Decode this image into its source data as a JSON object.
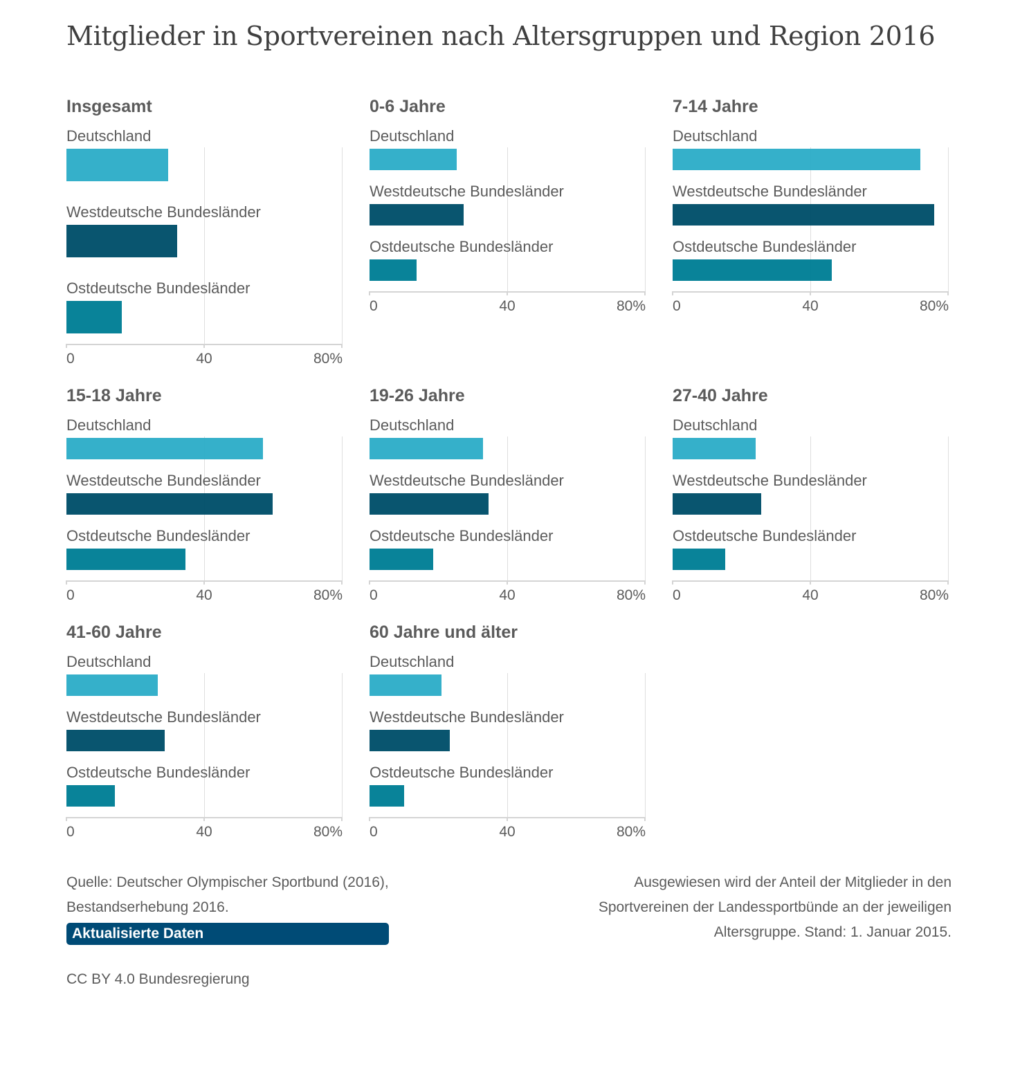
{
  "title": "Mitglieder in Sportvereinen nach Altersgruppen und Region 2016",
  "colors": {
    "Deutschland": "#2eadc8",
    "Westdeutsche Bundesländer": "#01506a",
    "Ostdeutsche Bundesländer": "#017f96"
  },
  "chart_data": [
    {
      "type": "bar",
      "orientation": "horizontal",
      "title": "Insgesamt",
      "categories": [
        "Deutschland",
        "Westdeutsche Bundesländer",
        "Ostdeutsche Bundesländer"
      ],
      "values": [
        29.6,
        32.2,
        16.0
      ],
      "xlim": [
        0,
        80
      ],
      "xticks": [
        "0",
        "40",
        "80%"
      ],
      "grid": true
    },
    {
      "type": "bar",
      "orientation": "horizontal",
      "title": "0-6 Jahre",
      "categories": [
        "Deutschland",
        "Westdeutsche Bundesländer",
        "Ostdeutsche Bundesländer"
      ],
      "values": [
        25.3,
        27.3,
        13.7
      ],
      "xlim": [
        0,
        80
      ],
      "xticks": [
        "0",
        "40",
        "80%"
      ],
      "grid": true
    },
    {
      "type": "bar",
      "orientation": "horizontal",
      "title": "7-14 Jahre",
      "categories": [
        "Deutschland",
        "Westdeutsche Bundesländer",
        "Ostdeutsche Bundesländer"
      ],
      "values": [
        72.0,
        76.0,
        46.3
      ],
      "xlim": [
        0,
        80
      ],
      "xticks": [
        "0",
        "40",
        "80%"
      ],
      "grid": true
    },
    {
      "type": "bar",
      "orientation": "horizontal",
      "title": "15-18 Jahre",
      "categories": [
        "Deutschland",
        "Westdeutsche Bundesländer",
        "Ostdeutsche Bundesländer"
      ],
      "values": [
        57.1,
        59.9,
        34.6
      ],
      "xlim": [
        0,
        80
      ],
      "xticks": [
        "0",
        "40",
        "80%"
      ],
      "grid": true
    },
    {
      "type": "bar",
      "orientation": "horizontal",
      "title": "19-26 Jahre",
      "categories": [
        "Deutschland",
        "Westdeutsche Bundesländer",
        "Ostdeutsche Bundesländer"
      ],
      "values": [
        32.9,
        34.6,
        18.5
      ],
      "xlim": [
        0,
        80
      ],
      "xticks": [
        "0",
        "40",
        "80%"
      ],
      "grid": true
    },
    {
      "type": "bar",
      "orientation": "horizontal",
      "title": "27-40 Jahre",
      "categories": [
        "Deutschland",
        "Westdeutsche Bundesländer",
        "Ostdeutsche Bundesländer"
      ],
      "values": [
        24.1,
        25.7,
        15.3
      ],
      "xlim": [
        0,
        80
      ],
      "xticks": [
        "0",
        "40",
        "80%"
      ],
      "grid": true
    },
    {
      "type": "bar",
      "orientation": "horizontal",
      "title": "41-60 Jahre",
      "categories": [
        "Deutschland",
        "Westdeutsche Bundesländer",
        "Ostdeutsche Bundesländer"
      ],
      "values": [
        26.5,
        28.5,
        14.1
      ],
      "xlim": [
        0,
        80
      ],
      "xticks": [
        "0",
        "40",
        "80%"
      ],
      "grid": true
    },
    {
      "type": "bar",
      "orientation": "horizontal",
      "title": "60 Jahre und älter",
      "categories": [
        "Deutschland",
        "Westdeutsche Bundesländer",
        "Ostdeutsche Bundesländer"
      ],
      "values": [
        20.9,
        23.3,
        10.1
      ],
      "xlim": [
        0,
        80
      ],
      "xticks": [
        "0",
        "40",
        "80%"
      ],
      "grid": true
    }
  ],
  "source": {
    "line1": "Quelle: Deutscher Olympischer Sportbund (2016),",
    "line2": "Bestandserhebung 2016.",
    "badge": "Aktualisierte Daten"
  },
  "note": {
    "line1": "Ausgewiesen wird der Anteil der Mitglieder in den",
    "line2": "Sportvereinen der Landessportbünde an der jeweiligen",
    "line3": "Altersgruppe. Stand: 1. Januar 2015."
  },
  "license": "CC BY 4.0 Bundesregierung"
}
